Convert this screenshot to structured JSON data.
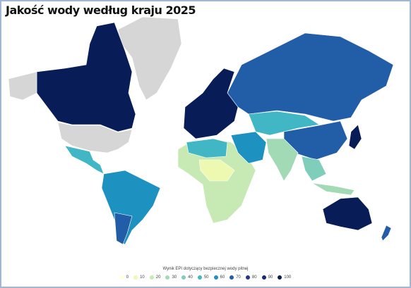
{
  "title": "Jakość wody według kraju 2025",
  "legend": {
    "title": "Wynik EPI dotyczący bezpiecznej wody pitnej",
    "items": [
      {
        "value": 0,
        "color": "#ffffd9"
      },
      {
        "value": 10,
        "color": "#edf8b1"
      },
      {
        "value": 20,
        "color": "#c7e9b4"
      },
      {
        "value": 30,
        "color": "#a1dab4"
      },
      {
        "value": 40,
        "color": "#7fcdbb"
      },
      {
        "value": 50,
        "color": "#41b6c4"
      },
      {
        "value": 60,
        "color": "#1d91c0"
      },
      {
        "value": 70,
        "color": "#225ea8"
      },
      {
        "value": 80,
        "color": "#253494"
      },
      {
        "value": 90,
        "color": "#1a2a6c"
      },
      {
        "value": 100,
        "color": "#081d58"
      }
    ]
  }
}
